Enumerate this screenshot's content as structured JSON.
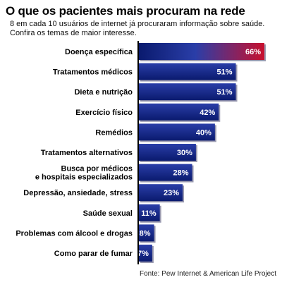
{
  "title": "O que os pacientes mais procuram na rede",
  "subtitle_lines": [
    "8 em cada 10 usuários de internet já procuraram informação sobre saúde.",
    "Confira os temas de maior interesse."
  ],
  "source": "Fonte: Pew Internet & American Life Project",
  "colors": {
    "bar_dark": "#0a1a6e",
    "bar_mid": "#2a3ea8",
    "highlight_end": "#c8102e",
    "axis": "#000000",
    "label_text": "#ffffff"
  },
  "chart_data": {
    "type": "bar",
    "orientation": "horizontal",
    "title": "O que os pacientes mais procuram na rede",
    "xlabel": "",
    "ylabel": "",
    "xlim": [
      0,
      66
    ],
    "grid": false,
    "legend": "none",
    "categories": [
      [
        "Doença específica"
      ],
      [
        "Tratamentos médicos"
      ],
      [
        "Dieta e nutrição"
      ],
      [
        "Exercício físico"
      ],
      [
        "Remédios"
      ],
      [
        "Tratamentos alternativos"
      ],
      [
        "Busca por médicos",
        "e hospitais especializados"
      ],
      [
        "Depressão, ansiedade, stress"
      ],
      [
        "Saúde sexual"
      ],
      [
        "Problemas com álcool e drogas"
      ],
      [
        "Como parar de fumar"
      ]
    ],
    "values": [
      66,
      51,
      51,
      42,
      40,
      30,
      28,
      23,
      11,
      8,
      7
    ],
    "value_labels": [
      "66%",
      "51%",
      "51%",
      "42%",
      "40%",
      "30%",
      "28%",
      "23%",
      "11%",
      "8%",
      "7%"
    ]
  }
}
